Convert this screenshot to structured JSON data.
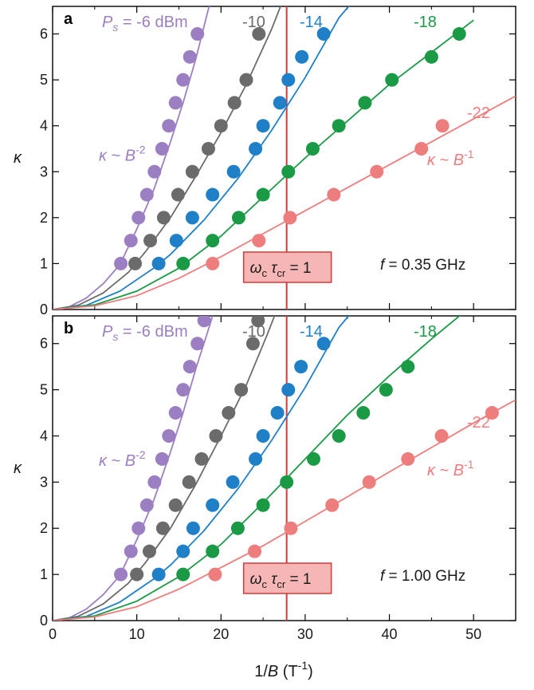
{
  "chart_data": [
    {
      "type": "scatter",
      "panel": "a",
      "xlabel": "",
      "ylabel": "κ",
      "xlim": [
        0,
        55
      ],
      "ylim": [
        0,
        6.6
      ],
      "xticks": [
        0,
        10,
        20,
        30,
        40,
        50
      ],
      "yticks": [
        0,
        1,
        2,
        3,
        4,
        5,
        6
      ],
      "frequency": "= 0.35 GHz",
      "frequency_symbol": "f",
      "resonance_x": 27.8,
      "resonance_label": "= 1",
      "series": [
        {
          "label": "-6 dBm",
          "color": "#9b7fc2",
          "x": [
            8.1,
            9.3,
            10.2,
            11.2,
            12.1,
            13.0,
            13.8,
            14.6,
            15.5,
            16.3,
            17.2
          ],
          "y": [
            1,
            1.5,
            2,
            2.5,
            3,
            3.5,
            4,
            4.5,
            5,
            5.5,
            6
          ],
          "curve_x": [
            0,
            2,
            4,
            6,
            8,
            10,
            12,
            14,
            15.5,
            17,
            19,
            20.2
          ],
          "curve_y": [
            0,
            0.06,
            0.25,
            0.56,
            0.98,
            1.75,
            2.6,
            3.65,
            4.5,
            5.45,
            6.9,
            7.7
          ]
        },
        {
          "label": "-10",
          "color": "#6b6b6b",
          "x": [
            9.8,
            11.6,
            13.2,
            14.9,
            16.6,
            18.5,
            20.0,
            21.6,
            23.0,
            24.5
          ],
          "y": [
            1,
            1.5,
            2,
            2.5,
            3,
            3.5,
            4,
            4.5,
            5,
            6
          ],
          "curve_x": [
            0,
            3,
            6,
            9,
            11,
            14,
            17,
            20,
            23,
            26,
            27.5
          ],
          "curve_y": [
            0,
            0.09,
            0.36,
            0.81,
            1.25,
            2.0,
            2.9,
            3.85,
            4.9,
            6.1,
            6.8
          ]
        },
        {
          "label": "-14",
          "color": "#1f7fc7",
          "x": [
            12.6,
            14.7,
            16.6,
            19.0,
            21.5,
            24.1,
            25.0,
            27.0,
            28.0,
            29.6,
            32.2
          ],
          "y": [
            1,
            1.5,
            2,
            2.5,
            3,
            3.5,
            4,
            4.5,
            5,
            5.5,
            6
          ],
          "curve_x": [
            0,
            4,
            8,
            12,
            14,
            18,
            22,
            26,
            30,
            34,
            37
          ],
          "curve_y": [
            0,
            0.09,
            0.4,
            0.9,
            1.2,
            1.95,
            2.85,
            3.9,
            5.05,
            6.35,
            7.0
          ]
        },
        {
          "label": "-18",
          "color": "#1a9a45",
          "x": [
            15.5,
            19.0,
            22.1,
            25.0,
            28.0,
            30.9,
            34.0,
            37.1,
            40.3,
            45.0,
            48.3
          ],
          "y": [
            1,
            1.5,
            2,
            2.5,
            3,
            3.5,
            4,
            4.5,
            5,
            5.5,
            6
          ],
          "curve_x": [
            0,
            5,
            10,
            15,
            20,
            25,
            30,
            35,
            40,
            45,
            50
          ],
          "curve_y": [
            0,
            0.1,
            0.4,
            0.9,
            1.6,
            2.45,
            3.3,
            4.1,
            4.9,
            5.6,
            6.3
          ]
        },
        {
          "label": "-22",
          "color": "#ee7d7d",
          "x": [
            19.0,
            24.5,
            28.2,
            33.4,
            38.5,
            43.8,
            46.3
          ],
          "y": [
            1,
            1.5,
            2,
            2.5,
            3,
            3.5,
            4
          ],
          "curve_x": [
            0,
            5,
            10,
            15,
            20,
            25,
            30,
            35,
            40,
            45,
            50,
            55
          ],
          "curve_y": [
            0,
            0.08,
            0.3,
            0.68,
            1.15,
            1.65,
            2.15,
            2.65,
            3.15,
            3.65,
            4.15,
            4.65
          ]
        }
      ]
    },
    {
      "type": "scatter",
      "panel": "b",
      "xlabel": "1/B (T⁻¹)",
      "ylabel": "κ",
      "xlim": [
        0,
        55
      ],
      "ylim": [
        0,
        6.6
      ],
      "xticks": [
        0,
        10,
        20,
        30,
        40,
        50
      ],
      "yticks": [
        0,
        1,
        2,
        3,
        4,
        5,
        6
      ],
      "frequency": "= 1.00 GHz",
      "frequency_symbol": "f",
      "resonance_x": 27.8,
      "resonance_label": "= 1",
      "series": [
        {
          "label": "-6 dBm",
          "color": "#9b7fc2",
          "x": [
            8.1,
            9.3,
            10.2,
            11.2,
            12.1,
            13.0,
            13.8,
            14.6,
            15.5,
            16.3,
            17.2,
            18.0
          ],
          "y": [
            1,
            1.5,
            2,
            2.5,
            3,
            3.5,
            4,
            4.5,
            5,
            5.5,
            6,
            6.5
          ],
          "curve_x": [
            0,
            2,
            4,
            6,
            8,
            10,
            12,
            14,
            15.5,
            17,
            18.5,
            20.5
          ],
          "curve_y": [
            0,
            0.06,
            0.25,
            0.56,
            0.98,
            1.75,
            2.6,
            3.65,
            4.5,
            5.45,
            6.3,
            7.5
          ]
        },
        {
          "label": "-10",
          "color": "#6b6b6b",
          "x": [
            10.0,
            11.5,
            13.1,
            14.6,
            16.2,
            17.7,
            19.4,
            20.9,
            22.4,
            23.8,
            24.4
          ],
          "y": [
            1,
            1.5,
            2,
            2.5,
            3,
            3.5,
            4,
            4.5,
            5,
            6,
            6.5
          ],
          "curve_x": [
            0,
            3,
            6,
            9,
            11,
            14,
            17,
            20,
            23,
            25.5,
            27
          ],
          "curve_y": [
            0,
            0.09,
            0.36,
            0.81,
            1.25,
            2.0,
            2.95,
            4.0,
            5.1,
            6.2,
            6.9
          ]
        },
        {
          "label": "-14",
          "color": "#1f7fc7",
          "x": [
            12.6,
            15.5,
            16.7,
            19.0,
            21.4,
            24.1,
            25.0,
            26.7,
            28.0,
            29.5,
            32.2
          ],
          "y": [
            1,
            1.5,
            2,
            2.5,
            3,
            3.5,
            4,
            4.5,
            5,
            5.5,
            6
          ],
          "curve_x": [
            0,
            4,
            8,
            12,
            14,
            18,
            22,
            26,
            30,
            34,
            37
          ],
          "curve_y": [
            0,
            0.09,
            0.4,
            0.9,
            1.2,
            1.95,
            2.85,
            3.9,
            5.05,
            6.35,
            7.0
          ]
        },
        {
          "label": "-18",
          "color": "#1a9a45",
          "x": [
            15.5,
            19.0,
            22.0,
            25.0,
            27.8,
            31.0,
            34.0,
            36.9,
            39.6,
            42.2
          ],
          "y": [
            1,
            1.5,
            2,
            2.5,
            3,
            3.5,
            4,
            4.5,
            5,
            5.5
          ],
          "curve_x": [
            0,
            5,
            10,
            15,
            20,
            25,
            30,
            35,
            40,
            45,
            50
          ],
          "curve_y": [
            0,
            0.1,
            0.42,
            0.95,
            1.65,
            2.55,
            3.5,
            4.45,
            5.3,
            6.1,
            6.85
          ]
        },
        {
          "label": "-22",
          "color": "#ee7d7d",
          "x": [
            19.3,
            24.0,
            28.3,
            33.2,
            37.6,
            42.2,
            46.2,
            52.2
          ],
          "y": [
            1,
            1.5,
            2,
            2.5,
            3,
            3.5,
            4,
            4.5
          ],
          "curve_x": [
            0,
            5,
            10,
            15,
            20,
            25,
            30,
            35,
            40,
            45,
            50,
            55
          ],
          "curve_y": [
            0,
            0.08,
            0.3,
            0.68,
            1.15,
            1.62,
            2.15,
            2.68,
            3.22,
            3.75,
            4.28,
            4.78
          ]
        }
      ]
    }
  ],
  "annotations": {
    "ps_symbol": "P",
    "ps_subscript": "s",
    "ps_eq": " = -6 dBm",
    "kappa_symbol": "κ",
    "tilde": " ~ ",
    "b_symbol": "B",
    "power_neg2": "-2",
    "power_neg1": "-1",
    "omega": "ω",
    "omega_sub": "c",
    "tau": "τ",
    "tau_sub": "cr",
    "xlabel_prefix": "1/",
    "xlabel_var": "B",
    "xlabel_open": " (T",
    "xlabel_power": "-1",
    "xlabel_close": ")"
  }
}
